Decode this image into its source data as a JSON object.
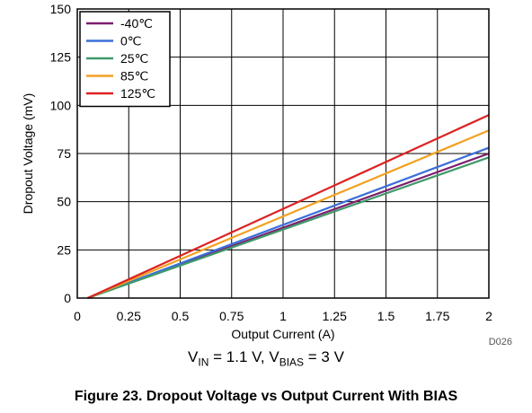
{
  "chart_data": {
    "type": "line",
    "xlabel": "Output Current (A)",
    "ylabel": "Dropout Voltage (mV)",
    "xlim": [
      0,
      2
    ],
    "ylim": [
      0,
      150
    ],
    "xticks": [
      "0",
      "0.25",
      "0.5",
      "0.75",
      "1",
      "1.25",
      "1.5",
      "1.75",
      "2"
    ],
    "yticks": [
      "0",
      "25",
      "50",
      "75",
      "100",
      "125",
      "150"
    ],
    "grid": true,
    "legend_position": "top-left",
    "code": "D026",
    "series": [
      {
        "name": "-40℃",
        "color": "#7b1f6e",
        "x": [
          0.05,
          2
        ],
        "y": [
          0,
          75
        ]
      },
      {
        "name": "0℃",
        "color": "#3b6fd8",
        "x": [
          0.05,
          2
        ],
        "y": [
          0,
          78
        ]
      },
      {
        "name": "25℃",
        "color": "#3f9a6a",
        "x": [
          0.05,
          2
        ],
        "y": [
          0,
          73
        ]
      },
      {
        "name": "85℃",
        "color": "#f2a122",
        "x": [
          0.05,
          2
        ],
        "y": [
          0,
          87
        ]
      },
      {
        "name": "125℃",
        "color": "#dd2222",
        "x": [
          0.05,
          2
        ],
        "y": [
          0,
          95
        ]
      }
    ]
  },
  "conditions": {
    "vin_symbol": "V",
    "vin_sub": "IN",
    "vin_value": " = 1.1 V, ",
    "vbias_symbol": "V",
    "vbias_sub": "BIAS",
    "vbias_value": " = 3 V"
  },
  "caption": "Figure 23. Dropout Voltage vs Output Current With BIAS"
}
